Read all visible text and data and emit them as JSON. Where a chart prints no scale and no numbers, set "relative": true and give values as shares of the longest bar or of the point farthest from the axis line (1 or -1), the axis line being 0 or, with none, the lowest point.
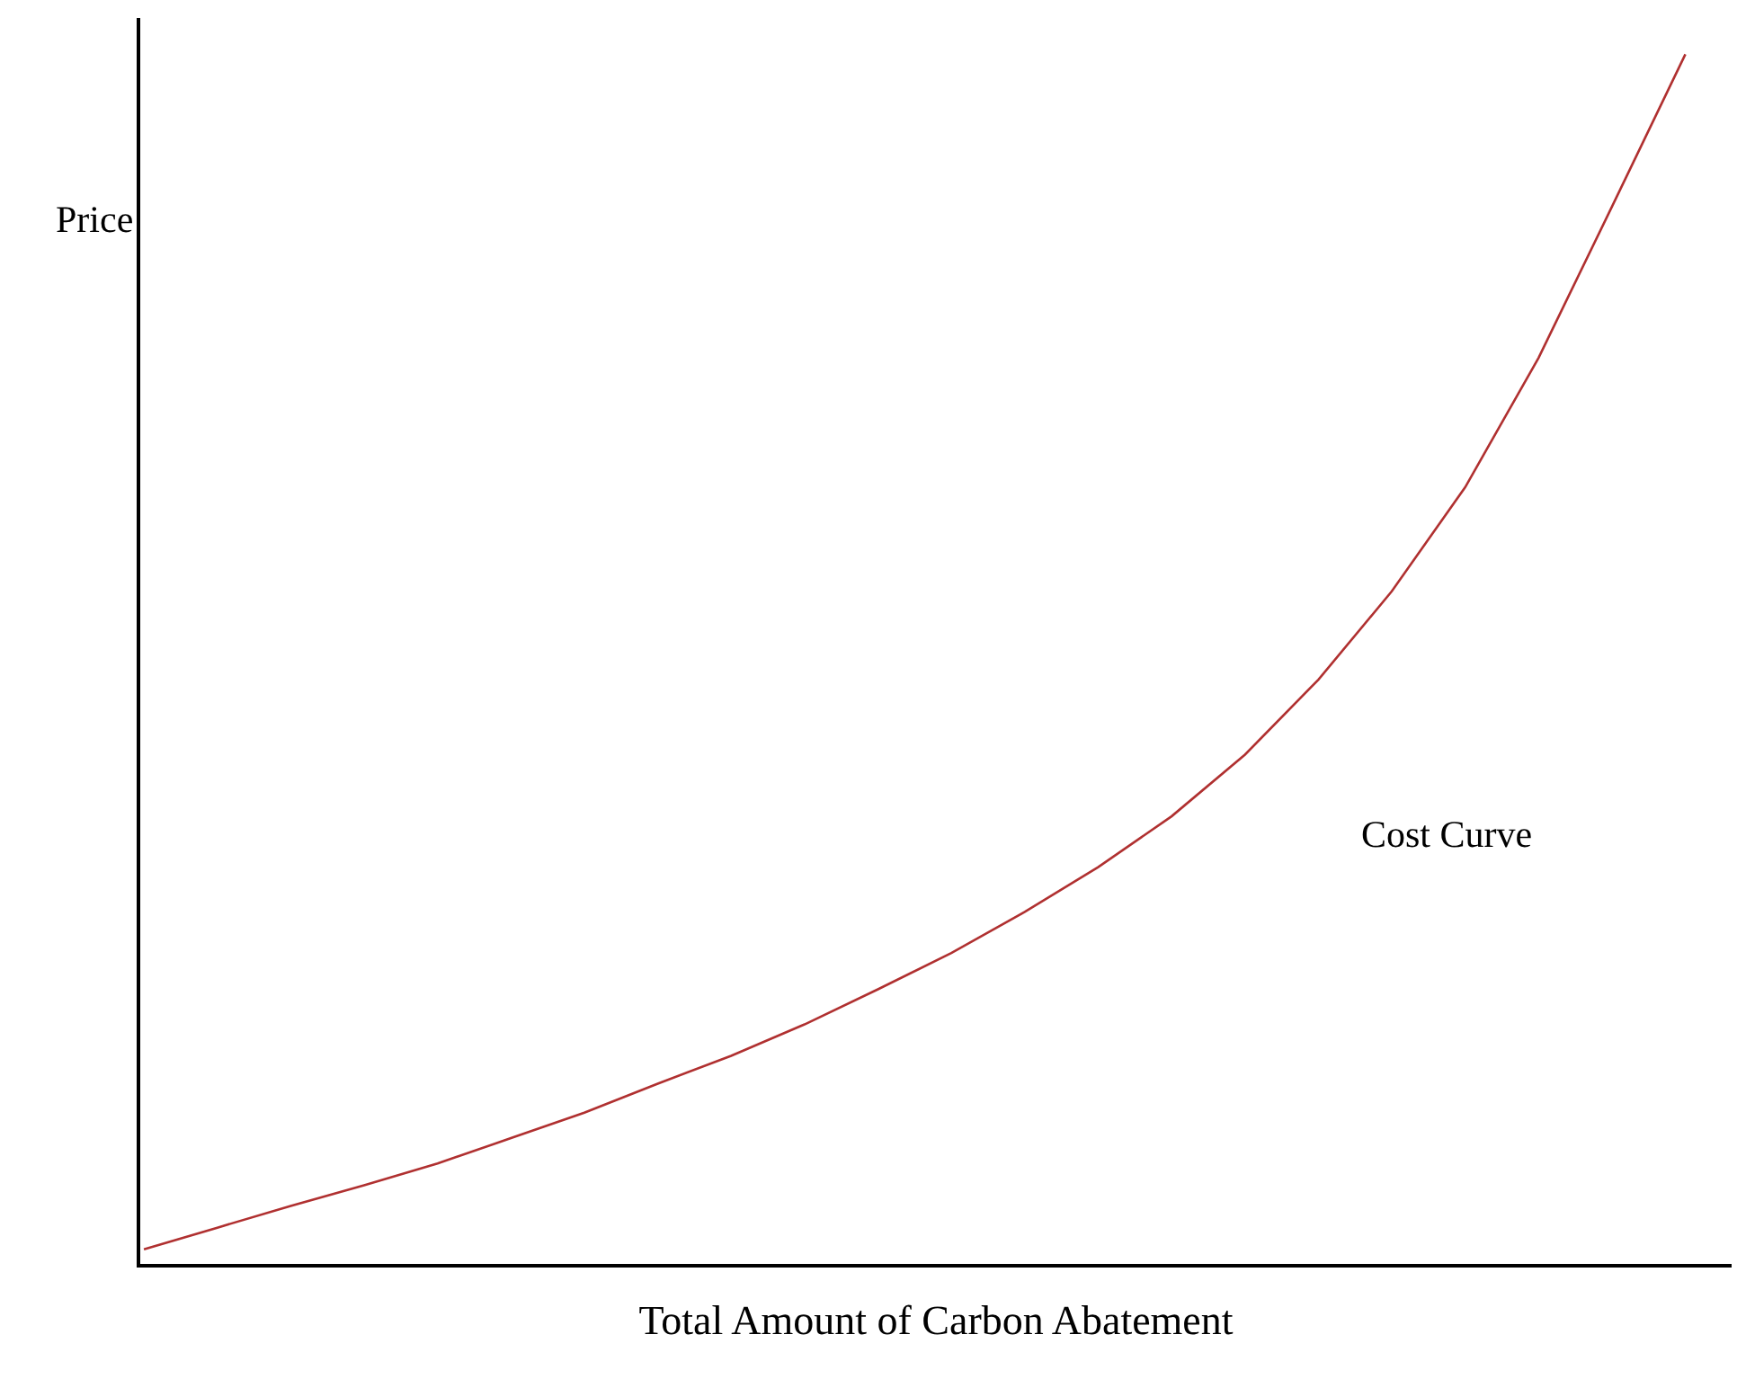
{
  "chart_data": {
    "type": "line",
    "relative": true,
    "xlabel": "Total Amount of Carbon Abatement",
    "ylabel": "Price",
    "categories": [
      null,
      null,
      null,
      null,
      null,
      null,
      null,
      null,
      null,
      null,
      null,
      null,
      null,
      null,
      null,
      null,
      null,
      null,
      null,
      null,
      null,
      null
    ],
    "grid": false,
    "legend": false,
    "marker": "none",
    "line_style": "solid",
    "tick_labels": false,
    "series": [
      {
        "name": "Cost Curve",
        "color": "#b03030",
        "values": [
          0.012,
          0.03,
          0.048,
          0.065,
          0.083,
          0.104,
          0.125,
          0.149,
          0.172,
          0.198,
          0.227,
          0.257,
          0.291,
          0.328,
          0.37,
          0.421,
          0.483,
          0.556,
          0.642,
          0.749,
          0.874,
          1
        ]
      }
    ]
  }
}
